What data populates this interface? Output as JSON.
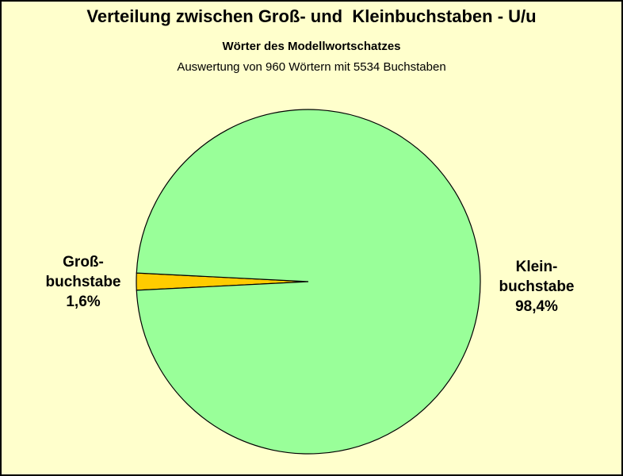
{
  "chart_data": {
    "type": "pie",
    "title": "Verteilung zwischen Groß- und  Kleinbuchstaben - U/u",
    "subtitle": "Wörter des Modellwortschatzes",
    "subtitle2": "Auswertung von 960 Wörtern mit 5534 Buchstaben",
    "slices": [
      {
        "label_line1": "Groß-",
        "label_line2": "buchstabe",
        "value_label": "1,6%",
        "value": 1.6,
        "color": "#FFCC00"
      },
      {
        "label_line1": "Klein-",
        "label_line2": "buchstabe",
        "value_label": "98,4%",
        "value": 98.4,
        "color": "#99FF99"
      }
    ]
  },
  "colors": {
    "background": "#FFFFCC",
    "outline": "#000000"
  }
}
